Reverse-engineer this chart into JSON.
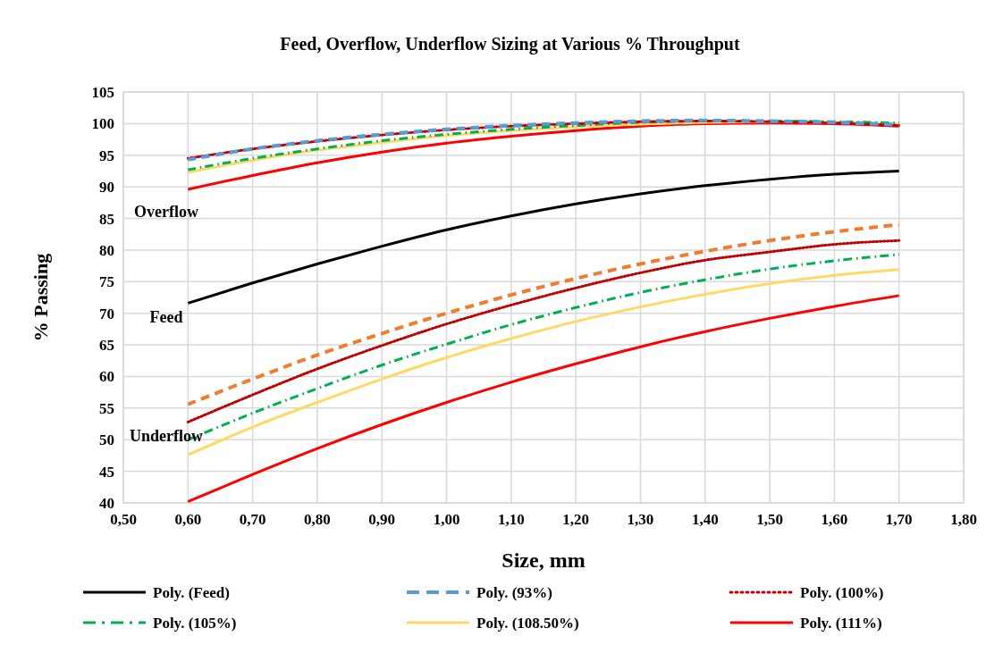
{
  "chart_data": {
    "type": "line",
    "title": "Feed, Overflow, Underflow Sizing at Various % Throughput",
    "xlabel": "Size, mm",
    "ylabel": "% Passing",
    "x": [
      0.6,
      0.7,
      0.8,
      0.9,
      1.0,
      1.1,
      1.2,
      1.3,
      1.4,
      1.5,
      1.6,
      1.7
    ],
    "xlim": [
      0.5,
      1.8
    ],
    "xticks": [
      {
        "value": 0.5,
        "label": "0,50"
      },
      {
        "value": 0.6,
        "label": "0,60"
      },
      {
        "value": 0.7,
        "label": "0,70"
      },
      {
        "value": 0.8,
        "label": "0,80"
      },
      {
        "value": 0.9,
        "label": "0,90"
      },
      {
        "value": 1.0,
        "label": "1,00"
      },
      {
        "value": 1.1,
        "label": "1,10"
      },
      {
        "value": 1.2,
        "label": "1,20"
      },
      {
        "value": 1.3,
        "label": "1,30"
      },
      {
        "value": 1.4,
        "label": "1,40"
      },
      {
        "value": 1.5,
        "label": "1,50"
      },
      {
        "value": 1.6,
        "label": "1,60"
      },
      {
        "value": 1.7,
        "label": "1,70"
      },
      {
        "value": 1.8,
        "label": "1,80"
      }
    ],
    "ylim": [
      40,
      105
    ],
    "yticks": [
      40,
      45,
      50,
      55,
      60,
      65,
      70,
      75,
      80,
      85,
      90,
      95,
      100,
      105
    ],
    "grid": true,
    "legend": "bottom",
    "marker": "none",
    "annotations": [
      "Overflow",
      "Feed",
      "Underflow"
    ],
    "series": [
      {
        "name": "Poly. (Feed)",
        "color": "#000000",
        "line_style": "solid",
        "values": [
          71.6,
          74.8,
          77.8,
          80.6,
          83.2,
          85.4,
          87.3,
          88.9,
          90.2,
          91.2,
          92.0,
          92.5
        ]
      },
      {
        "name": "Poly. (93%)",
        "color": "#5b9bd5",
        "line_style": "dashed",
        "values": [
          94.3,
          96.0,
          97.3,
          98.3,
          99.1,
          99.7,
          100.1,
          100.4,
          100.5,
          100.4,
          100.2,
          99.8
        ]
      },
      {
        "name": "Poly. (100%)",
        "color": "#c00000",
        "line_style": "dotted",
        "values": [
          94.5,
          96.0,
          97.2,
          98.2,
          99.0,
          99.6,
          100.0,
          100.3,
          100.4,
          100.3,
          100.1,
          99.7
        ]
      },
      {
        "name": "Poly. (105%)",
        "color": "#00b050",
        "line_style": "dashdot",
        "values": [
          92.7,
          94.5,
          96.0,
          97.3,
          98.3,
          99.1,
          99.7,
          100.2,
          100.4,
          100.4,
          100.3,
          100.1
        ]
      },
      {
        "name": "Poly. (108.50%)",
        "color": "#ffd966",
        "line_style": "solid",
        "values": [
          92.3,
          94.2,
          95.8,
          97.0,
          98.1,
          98.9,
          99.5,
          99.9,
          100.2,
          100.3,
          100.2,
          99.9
        ]
      },
      {
        "name": "Poly. (111%)",
        "color": "#ff0000",
        "line_style": "solid",
        "values": [
          89.6,
          91.8,
          93.8,
          95.5,
          96.9,
          98.0,
          98.9,
          99.6,
          100.0,
          100.1,
          100.0,
          99.6
        ]
      },
      {
        "color": "#ed7d31",
        "line_style": "dashed",
        "values": [
          55.6,
          59.6,
          63.4,
          66.8,
          70.0,
          72.9,
          75.5,
          77.8,
          79.8,
          81.5,
          82.9,
          84.0
        ]
      },
      {
        "color": "#c00000",
        "line_style": "dotted",
        "values": [
          52.8,
          57.1,
          61.2,
          64.9,
          68.3,
          71.3,
          74.0,
          76.4,
          78.4,
          79.7,
          80.9,
          81.5
        ]
      },
      {
        "color": "#00b050",
        "line_style": "dashdot",
        "values": [
          50.0,
          54.2,
          58.1,
          61.8,
          65.1,
          68.2,
          70.9,
          73.3,
          75.3,
          77.0,
          78.3,
          79.3
        ]
      },
      {
        "color": "#ffd966",
        "line_style": "solid",
        "values": [
          47.6,
          52.0,
          55.9,
          59.6,
          63.0,
          66.0,
          68.7,
          71.0,
          73.0,
          74.7,
          76.0,
          76.9
        ]
      },
      {
        "color": "#ff0000",
        "line_style": "solid",
        "values": [
          40.2,
          44.5,
          48.6,
          52.4,
          55.9,
          59.1,
          62.0,
          64.7,
          67.1,
          69.2,
          71.1,
          72.8
        ]
      }
    ]
  }
}
